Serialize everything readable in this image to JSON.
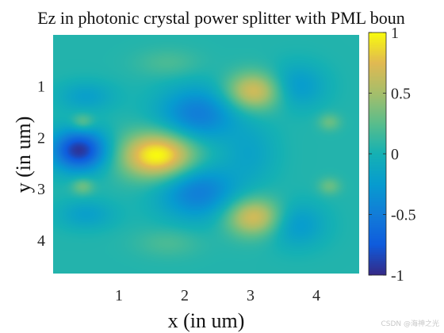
{
  "chart_data": {
    "type": "heatmap",
    "title": "Ez in photonic crystal power splitter with PML boun",
    "xlabel": "x (in um)",
    "ylabel": "y (in um)",
    "xlim": [
      0,
      4.65
    ],
    "ylim": [
      0,
      4.65
    ],
    "y_reversed": true,
    "xticks": [
      1,
      2,
      3,
      4
    ],
    "yticks": [
      1,
      2,
      3,
      4
    ],
    "colorbar": {
      "colormap": "parula",
      "clim": [
        -1,
        1
      ],
      "ticks": [
        1,
        0.5,
        0,
        -0.5,
        -1
      ],
      "tick_labels": [
        "1",
        "0.5",
        "0",
        "-0.5",
        "-1"
      ]
    },
    "baseline": 0.05,
    "field_features": [
      {
        "x": 0.4,
        "y": 2.25,
        "sx": 0.3,
        "sy": 0.28,
        "amp": -1.0
      },
      {
        "x": 1.6,
        "y": 2.35,
        "sx": 0.4,
        "sy": 0.32,
        "amp": 1.0
      },
      {
        "x": 2.2,
        "y": 1.55,
        "sx": 0.42,
        "sy": 0.38,
        "amp": -0.55
      },
      {
        "x": 2.2,
        "y": 3.05,
        "sx": 0.42,
        "sy": 0.38,
        "amp": -0.55
      },
      {
        "x": 3.05,
        "y": 1.1,
        "sx": 0.3,
        "sy": 0.26,
        "amp": 0.68
      },
      {
        "x": 3.05,
        "y": 3.55,
        "sx": 0.3,
        "sy": 0.26,
        "amp": 0.68
      },
      {
        "x": 3.0,
        "y": 2.3,
        "sx": 0.28,
        "sy": 0.4,
        "amp": -0.2
      },
      {
        "x": 3.7,
        "y": 1.0,
        "sx": 0.3,
        "sy": 0.3,
        "amp": -0.32
      },
      {
        "x": 3.7,
        "y": 3.7,
        "sx": 0.3,
        "sy": 0.3,
        "amp": -0.32
      },
      {
        "x": 4.2,
        "y": 1.7,
        "sx": 0.12,
        "sy": 0.12,
        "amp": 0.25
      },
      {
        "x": 4.2,
        "y": 2.95,
        "sx": 0.12,
        "sy": 0.12,
        "amp": 0.25
      },
      {
        "x": 0.5,
        "y": 1.2,
        "sx": 0.3,
        "sy": 0.2,
        "amp": -0.25
      },
      {
        "x": 0.5,
        "y": 3.5,
        "sx": 0.3,
        "sy": 0.2,
        "amp": -0.25
      },
      {
        "x": 0.45,
        "y": 1.7,
        "sx": 0.12,
        "sy": 0.12,
        "amp": 0.3
      },
      {
        "x": 0.45,
        "y": 2.95,
        "sx": 0.12,
        "sy": 0.12,
        "amp": 0.3
      },
      {
        "x": 1.75,
        "y": 0.55,
        "sx": 0.35,
        "sy": 0.2,
        "amp": 0.15
      },
      {
        "x": 1.75,
        "y": 4.05,
        "sx": 0.35,
        "sy": 0.2,
        "amp": 0.15
      }
    ]
  },
  "watermark": "CSDN @海神之光"
}
